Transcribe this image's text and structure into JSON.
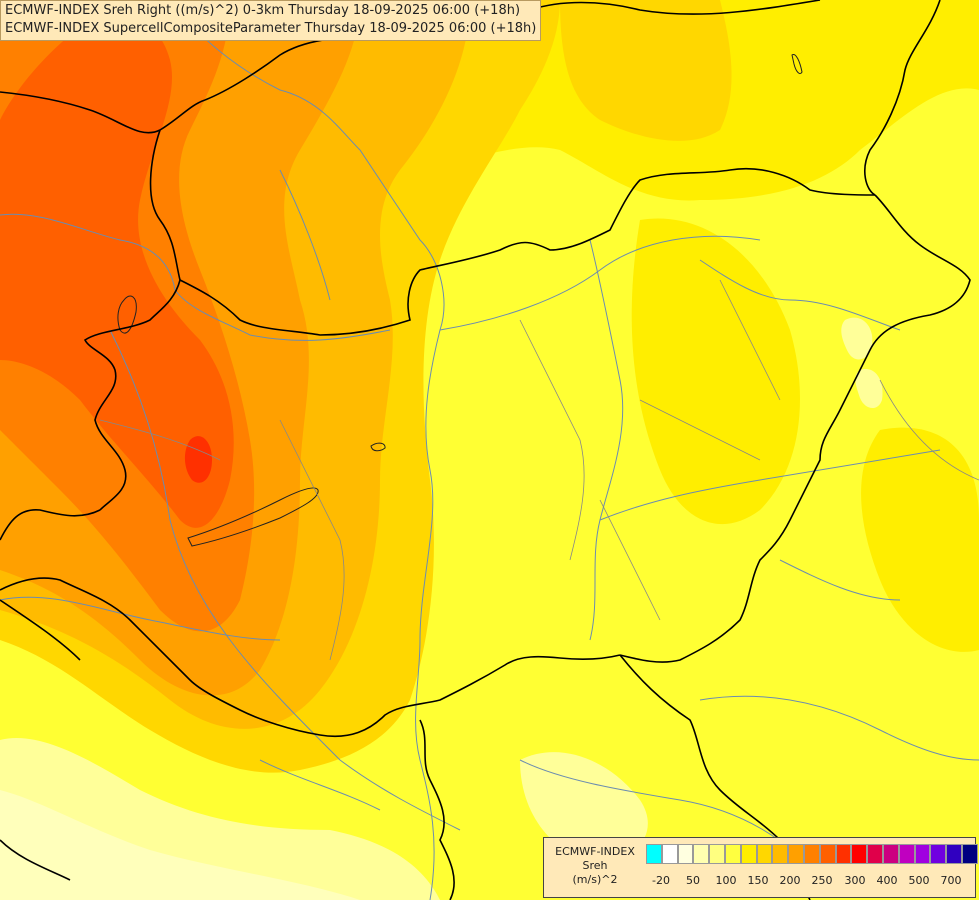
{
  "header": {
    "line1": "ECMWF-INDEX Sreh Right ((m/s)^2) 0-3km Thursday 18-09-2025 06:00 (+18h)",
    "line2": "ECMWF-INDEX SupercellCompositeParameter Thursday 18-09-2025 06:00 (+18h)"
  },
  "legend": {
    "title1": "ECMWF-INDEX",
    "title2": "Sreh",
    "title3": "(m/s)^2",
    "colors": [
      "#00ffff",
      "#ffffff",
      "#ffffe0",
      "#ffffb0",
      "#ffff80",
      "#ffff40",
      "#ffee00",
      "#ffd700",
      "#ffbb00",
      "#ffa000",
      "#ff8000",
      "#ff6000",
      "#ff3000",
      "#ff0000",
      "#e0004a",
      "#cc0080",
      "#c000c0",
      "#a000e0",
      "#7000e0",
      "#3000c0",
      "#000080"
    ],
    "ticks": [
      "-20",
      "50",
      "100",
      "150",
      "200",
      "250",
      "300",
      "400",
      "500",
      "700"
    ]
  },
  "map": {
    "fields": {
      "bg": "#ffff33",
      "pale": "#ffff99",
      "light": "#ffffbb",
      "yellow": "#ffee00",
      "gold": "#ffd700",
      "orange1": "#ffbb00",
      "orange2": "#ffa000",
      "orange3": "#ff8000",
      "orange4": "#ff6000",
      "red": "#ff3000"
    }
  }
}
